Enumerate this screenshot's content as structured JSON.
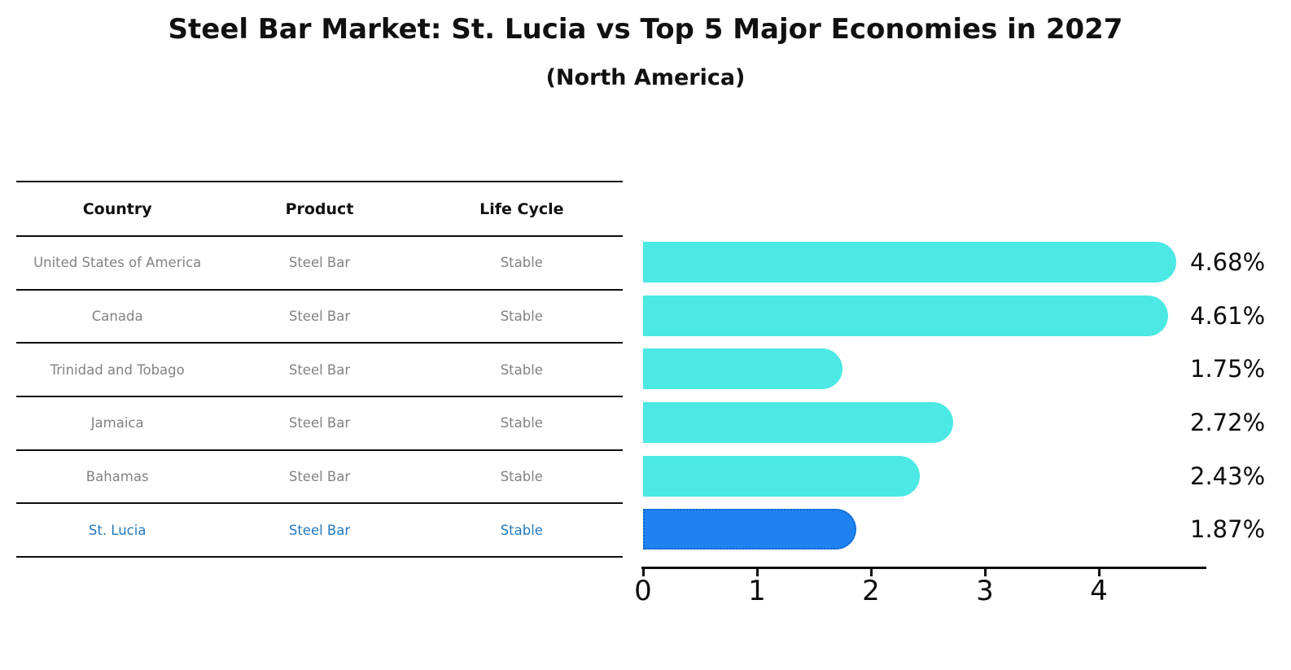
{
  "header": {
    "title": "Steel Bar Market: St. Lucia vs Top 5 Major Economies in 2027",
    "subtitle": "(North America)"
  },
  "table": {
    "columns": [
      "Country",
      "Product",
      "Life Cycle"
    ],
    "rows": [
      {
        "country": "United States of America",
        "product": "Steel Bar",
        "life_cycle": "Stable",
        "highlighted": false
      },
      {
        "country": "Canada",
        "product": "Steel Bar",
        "life_cycle": "Stable",
        "highlighted": false
      },
      {
        "country": "Trinidad and Tobago",
        "product": "Steel Bar",
        "life_cycle": "Stable",
        "highlighted": false
      },
      {
        "country": "Jamaica",
        "product": "Steel Bar",
        "life_cycle": "Stable",
        "highlighted": false
      },
      {
        "country": "Bahamas",
        "product": "Steel Bar",
        "life_cycle": "Stable",
        "highlighted": false
      },
      {
        "country": "St. Lucia",
        "product": "Steel Bar",
        "life_cycle": "Stable",
        "highlighted": true
      }
    ]
  },
  "chart_data": {
    "type": "bar",
    "orientation": "horizontal",
    "title": "Steel Bar Market: St. Lucia vs Top 5 Major Economies in 2027",
    "subtitle": "(North America)",
    "categories": [
      "United States of America",
      "Canada",
      "Trinidad and Tobago",
      "Jamaica",
      "Bahamas",
      "St. Lucia"
    ],
    "values": [
      4.68,
      4.61,
      1.75,
      2.72,
      2.43,
      1.87
    ],
    "value_labels": [
      "4.68%",
      "4.61%",
      "1.75%",
      "2.72%",
      "2.43%",
      "1.87%"
    ],
    "xlabel": "",
    "ylabel": "",
    "xlim": [
      0,
      4.93
    ],
    "xticks": [
      0,
      1,
      2,
      3,
      4
    ],
    "grid": false,
    "legend": false,
    "bar_color": "#4BE8E4",
    "highlight_index": 5,
    "highlight_color": "#1E82F0",
    "highlight_border_color": "#1467C8",
    "highlight_text_color": "#2478BE"
  }
}
